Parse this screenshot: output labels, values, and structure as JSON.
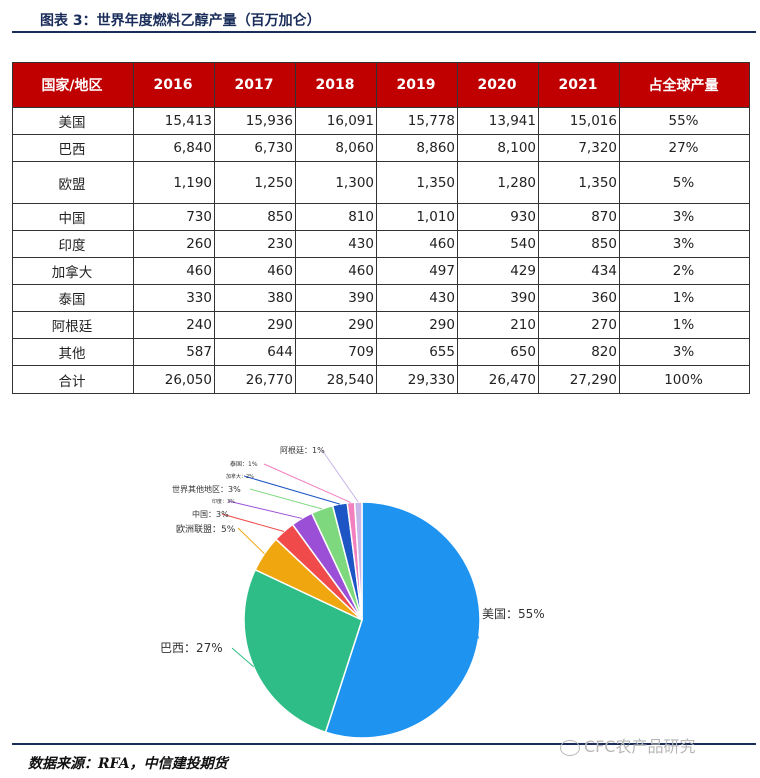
{
  "figure_title": "图表 3：世界年度燃料乙醇产量（百万加仑）",
  "source": "数据来源：RFA，中信建投期货",
  "watermark": "CFC农产品研究",
  "table": {
    "headers": [
      "国家/地区",
      "2016",
      "2017",
      "2018",
      "2019",
      "2020",
      "2021",
      "占全球产量"
    ],
    "rows": [
      {
        "country": "美国",
        "values": [
          "15,413",
          "15,936",
          "16,091",
          "15,778",
          "13,941",
          "15,016"
        ],
        "share": "55%"
      },
      {
        "country": "巴西",
        "values": [
          "6,840",
          "6,730",
          "8,060",
          "8,860",
          "8,100",
          "7,320"
        ],
        "share": "27%"
      },
      {
        "country": "欧盟",
        "values": [
          "1,190",
          "1,250",
          "1,300",
          "1,350",
          "1,280",
          "1,350"
        ],
        "share": "5%"
      },
      {
        "country": "中国",
        "values": [
          "730",
          "850",
          "810",
          "1,010",
          "930",
          "870"
        ],
        "share": "3%"
      },
      {
        "country": "印度",
        "values": [
          "260",
          "230",
          "430",
          "460",
          "540",
          "850"
        ],
        "share": "3%"
      },
      {
        "country": "加拿大",
        "values": [
          "460",
          "460",
          "460",
          "497",
          "429",
          "434"
        ],
        "share": "2%"
      },
      {
        "country": "泰国",
        "values": [
          "330",
          "380",
          "390",
          "430",
          "390",
          "360"
        ],
        "share": "1%"
      },
      {
        "country": "阿根廷",
        "values": [
          "240",
          "290",
          "290",
          "290",
          "210",
          "270"
        ],
        "share": "1%"
      },
      {
        "country": "其他",
        "values": [
          "587",
          "644",
          "709",
          "655",
          "650",
          "820"
        ],
        "share": "3%"
      },
      {
        "country": "合计",
        "values": [
          "26,050",
          "26,770",
          "28,540",
          "29,330",
          "26,470",
          "27,290"
        ],
        "share": "100%"
      }
    ]
  },
  "chart_data": {
    "type": "pie",
    "slices": [
      {
        "label": "美国：55%",
        "value": 55,
        "color": "#1f93f0"
      },
      {
        "label": "巴西：27%",
        "value": 27,
        "color": "#2ebd86"
      },
      {
        "label": "欧洲联盟：5%",
        "value": 5,
        "color": "#f0a70f"
      },
      {
        "label": "中国：3%",
        "value": 3,
        "color": "#f04a4a"
      },
      {
        "label": "印度：3%",
        "value": 3,
        "color": "#9b4fd6"
      },
      {
        "label": "世界其他地区：3%",
        "value": 3,
        "color": "#7ed87e"
      },
      {
        "label": "加拿大：2%",
        "value": 2,
        "color": "#1d55c4"
      },
      {
        "label": "泰国：1%",
        "value": 1,
        "color": "#f27fbe"
      },
      {
        "label": "阿根廷：1%",
        "value": 1,
        "color": "#c9b6e8"
      }
    ]
  }
}
